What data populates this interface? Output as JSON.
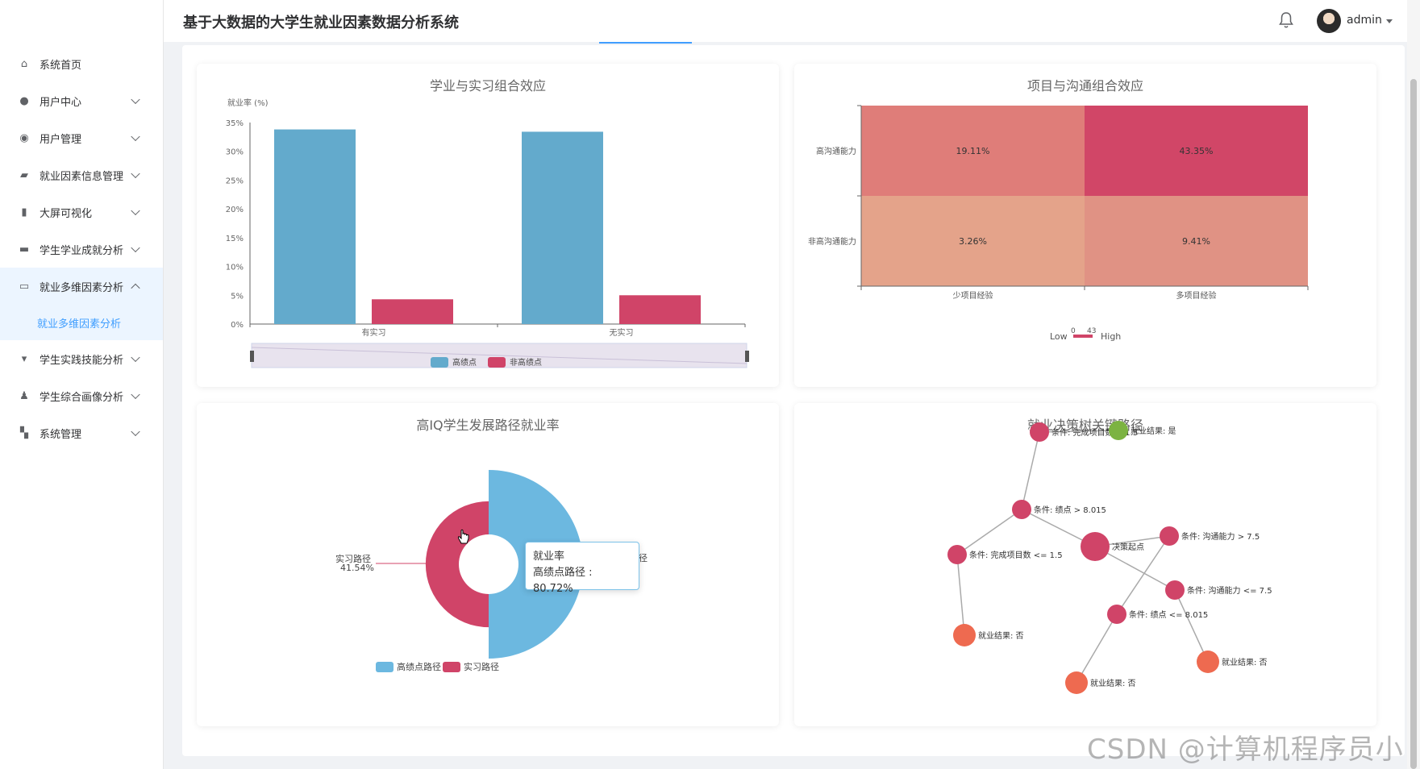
{
  "app": {
    "title": "基于大数据的大学生就业因素数据分析系统",
    "user": "admin"
  },
  "sidebar": {
    "items": [
      {
        "label": "系统首页",
        "icon": "home-icon",
        "expandable": false
      },
      {
        "label": "用户中心",
        "icon": "user-icon",
        "expandable": true
      },
      {
        "label": "用户管理",
        "icon": "location-icon",
        "expandable": true
      },
      {
        "label": "就业因素信息管理",
        "icon": "chart-icon",
        "expandable": true
      },
      {
        "label": "大屏可视化",
        "icon": "bar-icon",
        "expandable": true
      },
      {
        "label": "学生学业成就分析",
        "icon": "chat-icon",
        "expandable": true
      },
      {
        "label": "就业多维因素分析",
        "icon": "monitor-icon",
        "expandable": true,
        "open": true
      },
      {
        "label": "学生实践技能分析",
        "icon": "trophy-icon",
        "expandable": true
      },
      {
        "label": "学生综合画像分析",
        "icon": "person-icon",
        "expandable": true
      },
      {
        "label": "系统管理",
        "icon": "ticket-icon",
        "expandable": true
      }
    ],
    "subitem": "就业多维因素分析"
  },
  "charts": {
    "bar": {
      "title": "学业与实习组合效应",
      "ylabel": "就业率 (%)",
      "yticks": [
        "35%",
        "30%",
        "25%",
        "20%",
        "15%",
        "10%",
        "5%",
        "0%"
      ],
      "legend": [
        "高绩点",
        "非高绩点"
      ]
    },
    "heatmap": {
      "title": "项目与沟通组合效应",
      "vm_low": "Low",
      "vm_high": "High",
      "vm_min": "0",
      "vm_max": "43"
    },
    "pie": {
      "title": "高IQ学生发展路径就业率",
      "outer_label": "实习路径",
      "outer_value": "41.54%",
      "right_label_fragment": "径",
      "legend": [
        "高绩点路径",
        "实习路径"
      ],
      "tooltip_title": "就业率",
      "tooltip_line": "高绩点路径 : 80.72%"
    },
    "tree": {
      "title": "就业决策树关键路径",
      "nodes": [
        {
          "label": "条件: 完成项目数 > 1.5",
          "color": "#d04468"
        },
        {
          "label": "就业结果: 是",
          "color": "#7cb342"
        },
        {
          "label": "条件: 绩点 > 8.015",
          "color": "#d04468"
        },
        {
          "label": "决策起点",
          "color": "#d04468"
        },
        {
          "label": "条件: 沟通能力 > 7.5",
          "color": "#d04468"
        },
        {
          "label": "条件: 完成项目数 <= 1.5",
          "color": "#d04468"
        },
        {
          "label": "条件: 沟通能力 <= 7.5",
          "color": "#d04468"
        },
        {
          "label": "条件: 绩点 <= 8.015",
          "color": "#d04468"
        },
        {
          "label": "就业结果: 否",
          "color": "#ee6a50"
        },
        {
          "label": "就业结果: 否",
          "color": "#ee6a50"
        },
        {
          "label": "就业结果: 否",
          "color": "#ee6a50"
        }
      ]
    }
  },
  "chart_data": [
    {
      "type": "bar",
      "title": "学业与实习组合效应",
      "ylabel": "就业率 (%)",
      "categories": [
        "有实习",
        "无实习"
      ],
      "ylim": [
        0,
        35
      ],
      "series": [
        {
          "name": "高绩点",
          "values": [
            33.8,
            33.4
          ],
          "color": "#63aacc"
        },
        {
          "name": "非高绩点",
          "values": [
            4.3,
            5.0
          ],
          "color": "#d04468"
        }
      ]
    },
    {
      "type": "heatmap",
      "title": "项目与沟通组合效应",
      "x": [
        "少项目经验",
        "多项目经验"
      ],
      "y": [
        "高沟通能力",
        "非高沟通能力"
      ],
      "values": [
        [
          "19.11%",
          "43.35%"
        ],
        [
          "3.26%",
          "9.41%"
        ]
      ],
      "colors": [
        [
          "#df7d79",
          "#d14667"
        ],
        [
          "#e4a38a",
          "#e09284"
        ]
      ]
    },
    {
      "type": "pie",
      "title": "高IQ学生发展路径就业率",
      "slices": [
        {
          "name": "高绩点路径",
          "value": 80.72,
          "color": "#6cb8e0"
        },
        {
          "name": "实习路径",
          "value": 41.54,
          "color": "#d04468"
        }
      ]
    }
  ]
}
